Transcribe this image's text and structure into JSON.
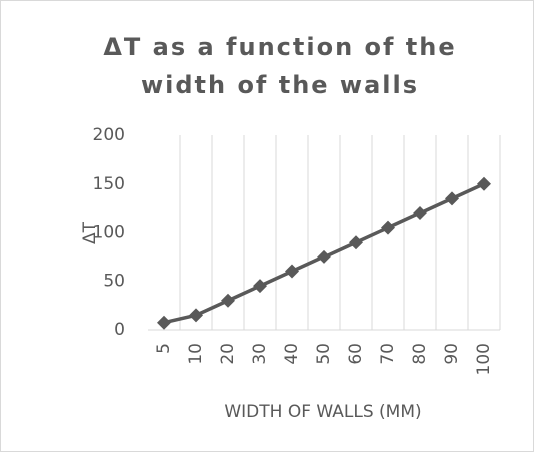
{
  "chart_data": {
    "type": "line",
    "title": "ΔT as a function of the width of the walls",
    "x_label": "WIDTH OF WALLS (MM)",
    "y_label": "ΔT",
    "categories": [
      "5",
      "10",
      "20",
      "30",
      "40",
      "50",
      "60",
      "70",
      "80",
      "90",
      "100"
    ],
    "series": [
      {
        "name": "ΔT",
        "color": "#595959",
        "values": [
          7.5,
          15,
          30,
          45,
          60,
          75,
          90,
          105,
          120,
          135,
          150
        ]
      }
    ],
    "ylim": [
      0,
      200
    ],
    "yticks": [
      0,
      50,
      100,
      150,
      200
    ],
    "grid": "x",
    "legend": false
  }
}
